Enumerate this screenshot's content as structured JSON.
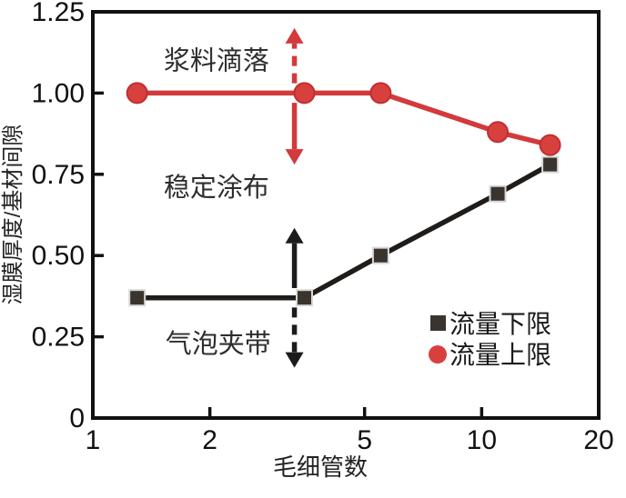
{
  "chart_data": {
    "type": "line",
    "title": "",
    "xlabel": "毛细管数",
    "ylabel": "湿膜厚度/基材间隙",
    "x_scale": "log",
    "xlim": [
      1,
      20
    ],
    "ylim": [
      0,
      1.25
    ],
    "x_ticks": [
      1,
      2,
      5,
      10,
      20
    ],
    "y_ticks": [
      "0",
      "0.25",
      "0.50",
      "0.75",
      "1.00",
      "1.25"
    ],
    "grid": false,
    "x": [
      1.3,
      3.5,
      5.5,
      11,
      15
    ],
    "series": [
      {
        "name": "流量下限",
        "marker": "square",
        "line_color": "#1f1c1a",
        "marker_fill": "#3a342e",
        "marker_stroke": "#d8d8d8",
        "values": [
          0.37,
          0.37,
          0.5,
          0.69,
          0.78
        ]
      },
      {
        "name": "流量上限",
        "marker": "circle",
        "line_color": "#d23a3b",
        "marker_fill": "#d8403e",
        "marker_stroke": "#bd3032",
        "values": [
          1.0,
          1.0,
          1.0,
          0.88,
          0.84
        ]
      }
    ],
    "annotations": [
      {
        "text": "浆料滴落",
        "x": 2.08,
        "y": 1.1
      },
      {
        "text": "稳定涂布",
        "x": 2.08,
        "y": 0.71
      },
      {
        "text": "气泡夹带",
        "x": 2.1,
        "y": 0.23
      }
    ],
    "arrows": [
      {
        "color": "#d23a3b",
        "style": "dashed",
        "direction": "up",
        "x": 3.3,
        "y_from": 1.03,
        "y_to": 1.2
      },
      {
        "color": "#d23a3b",
        "style": "solid",
        "direction": "down",
        "x": 3.3,
        "y_from": 0.97,
        "y_to": 0.78
      },
      {
        "color": "#1b1b1b",
        "style": "solid",
        "direction": "up",
        "x": 3.3,
        "y_from": 0.4,
        "y_to": 0.585
      },
      {
        "color": "#1b1b1b",
        "style": "dashed",
        "direction": "down",
        "x": 3.3,
        "y_from": 0.34,
        "y_to": 0.155
      }
    ],
    "legend": {
      "position": "lower-right",
      "items": [
        {
          "label": "流量下限",
          "marker": "square",
          "color": "#3a342e",
          "stroke": "#1b1b1b"
        },
        {
          "label": "流量上限",
          "marker": "circle",
          "color": "#d8403e",
          "stroke": "#bd3032"
        }
      ]
    },
    "frame_color": "#111111",
    "background": "#ffffff"
  }
}
